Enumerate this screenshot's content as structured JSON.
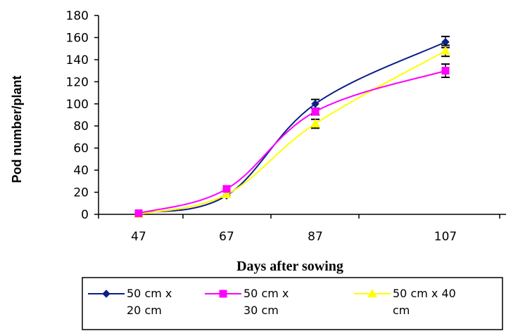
{
  "chart_data": {
    "type": "line",
    "title": "",
    "xlabel": "Days after sowing",
    "ylabel": "Pod number/plant",
    "categories": [
      "47",
      "67",
      "87",
      "107"
    ],
    "ylim": [
      0,
      180
    ],
    "yticks": [
      0,
      20,
      40,
      60,
      80,
      100,
      120,
      140,
      160,
      180
    ],
    "grid": false,
    "legend_position": "bottom",
    "series": [
      {
        "name": "50 cm x 20 cm",
        "legend_lines": [
          "50 cm x",
          "20 cm"
        ],
        "color": "#0b1f8a",
        "marker": "diamond",
        "values": [
          1,
          17,
          100,
          156
        ],
        "errors": [
          0,
          0,
          4,
          5
        ]
      },
      {
        "name": "50 cm x 30 cm",
        "legend_lines": [
          "50 cm x",
          "30 cm"
        ],
        "color": "#ff00ff",
        "marker": "square",
        "values": [
          1,
          23,
          93,
          130
        ],
        "errors": [
          0,
          0,
          3,
          6
        ]
      },
      {
        "name": "50 cm x 40 cm",
        "legend_lines": [
          "50 cm x 40",
          "cm"
        ],
        "color": "#ffff00",
        "marker": "triangle",
        "values": [
          0,
          18,
          82,
          148
        ],
        "errors": [
          0,
          0,
          4,
          5
        ]
      }
    ]
  }
}
